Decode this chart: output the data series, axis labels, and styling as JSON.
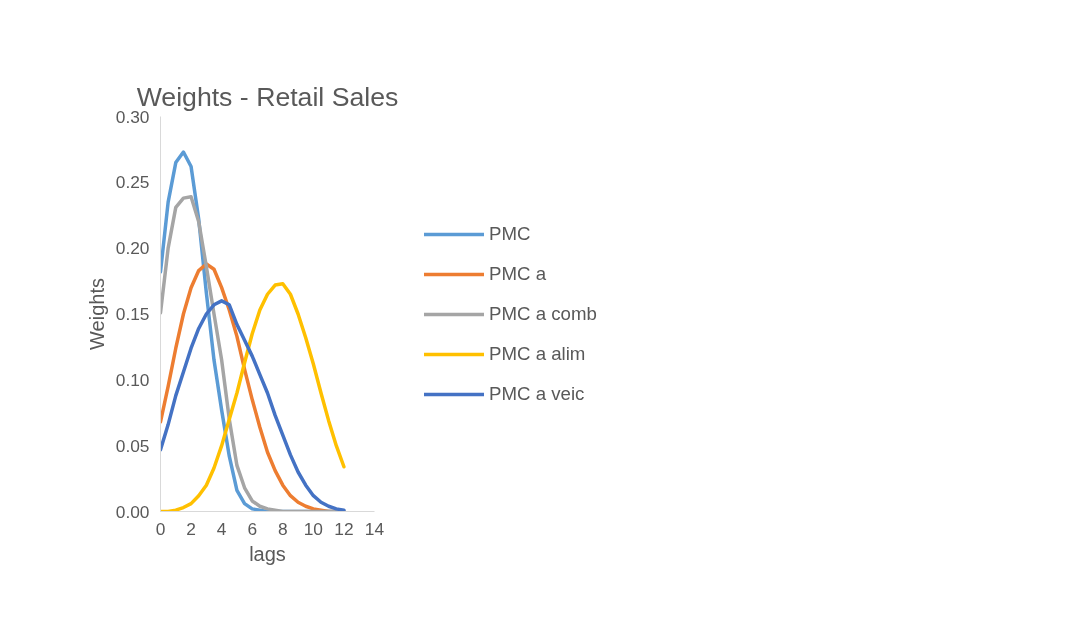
{
  "chart_data": {
    "type": "line",
    "title": "Weights - Retail Sales",
    "xlabel": "lags",
    "ylabel": "Weights",
    "x": [
      0,
      0.5,
      1,
      1.5,
      2,
      2.5,
      3,
      3.5,
      4,
      4.5,
      5,
      5.5,
      6,
      6.5,
      7,
      7.5,
      8,
      8.5,
      9,
      9.5,
      10,
      10.5,
      11,
      11.5,
      12
    ],
    "series": [
      {
        "name": "PMC",
        "color": "#5b9bd5",
        "values": [
          0.182,
          0.235,
          0.265,
          0.273,
          0.262,
          0.222,
          0.166,
          0.115,
          0.077,
          0.042,
          0.016,
          0.006,
          0.002,
          0.001,
          0.0,
          0.0,
          0.0,
          0.0,
          0.0,
          0.0,
          0.0,
          0.0,
          0.0,
          0.0,
          0.0
        ]
      },
      {
        "name": "PMC a",
        "color": "#ed7d31",
        "values": [
          0.068,
          0.095,
          0.124,
          0.15,
          0.17,
          0.183,
          0.188,
          0.184,
          0.17,
          0.153,
          0.133,
          0.108,
          0.085,
          0.064,
          0.045,
          0.031,
          0.02,
          0.012,
          0.007,
          0.004,
          0.002,
          0.001,
          0.0,
          0.0,
          0.0
        ]
      },
      {
        "name": "PMC a comb",
        "color": "#a5a5a5",
        "values": [
          0.151,
          0.2,
          0.231,
          0.238,
          0.239,
          0.22,
          0.186,
          0.15,
          0.115,
          0.07,
          0.035,
          0.018,
          0.008,
          0.004,
          0.002,
          0.001,
          0.0,
          0.0,
          0.0,
          0.0,
          0.0,
          0.0,
          0.0,
          0.0,
          0.0
        ]
      },
      {
        "name": "PMC a alim",
        "color": "#ffc000",
        "values": [
          0.0,
          0.0,
          0.001,
          0.003,
          0.006,
          0.012,
          0.02,
          0.033,
          0.05,
          0.07,
          0.09,
          0.113,
          0.135,
          0.153,
          0.165,
          0.172,
          0.173,
          0.165,
          0.15,
          0.132,
          0.112,
          0.09,
          0.069,
          0.05,
          0.034
        ]
      },
      {
        "name": "PMC a veic",
        "color": "#4472c4",
        "values": [
          0.047,
          0.066,
          0.088,
          0.106,
          0.124,
          0.139,
          0.15,
          0.157,
          0.16,
          0.157,
          0.142,
          0.13,
          0.118,
          0.104,
          0.09,
          0.073,
          0.058,
          0.043,
          0.03,
          0.02,
          0.012,
          0.007,
          0.004,
          0.002,
          0.001
        ]
      }
    ],
    "xlim": [
      0,
      14
    ],
    "xticks": [
      0,
      2,
      4,
      6,
      8,
      10,
      12,
      14
    ],
    "ylim": [
      0,
      0.3
    ],
    "yticks": [
      {
        "value": 0,
        "label": "0.00"
      },
      {
        "value": 0.05,
        "label": "0.05"
      },
      {
        "value": 0.1,
        "label": "0.10"
      },
      {
        "value": 0.15,
        "label": "0.15"
      },
      {
        "value": 0.2,
        "label": "0.20"
      },
      {
        "value": 0.25,
        "label": "0.25"
      },
      {
        "value": 0.3,
        "label": "0.30"
      }
    ],
    "grid": false,
    "legend": "right",
    "line_style": "solid",
    "marker": "none"
  }
}
